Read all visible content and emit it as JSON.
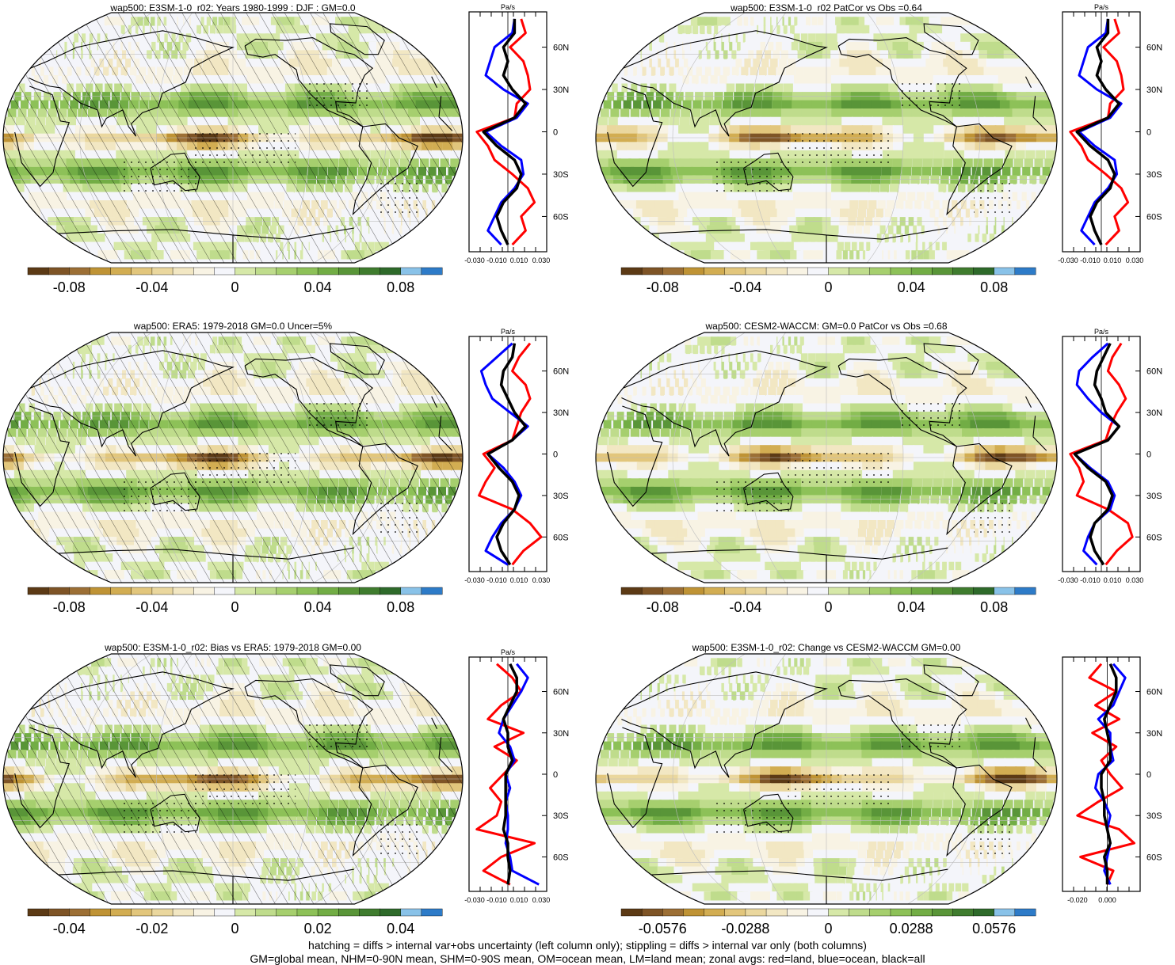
{
  "chart_data": [
    {
      "type": "heatmap",
      "title": "wap500: E3SM-1-0_r02: Years 1980-1999 : DJF : GM=0.0",
      "colorbar_ticks": [
        "-0.08",
        "-0.04",
        "0",
        "0.04",
        "0.08"
      ],
      "colorbar_range": [
        -0.11,
        0.11
      ],
      "hatching": true,
      "profile": {
        "unit": "Pa/s",
        "x_ticks": [
          "-0.030",
          "-0.010",
          "0.010",
          "0.030"
        ],
        "xlim": [
          -0.035,
          0.035
        ],
        "y_ticks": [
          "60N",
          "30N",
          "0",
          "30S",
          "60S"
        ],
        "series": [
          {
            "name": "land",
            "color": "#ff0000",
            "lat": [
              80,
              70,
              60,
              50,
              40,
              30,
              20,
              10,
              0,
              -10,
              -20,
              -30,
              -40,
              -50,
              -60,
              -70,
              -80
            ],
            "values": [
              0.012,
              0.016,
              0.002,
              0.014,
              0.018,
              0.02,
              0.008,
              0.006,
              -0.028,
              -0.018,
              -0.012,
              0.004,
              0.018,
              0.024,
              0.012,
              0.016,
              0.004
            ]
          },
          {
            "name": "ocean",
            "color": "#0000ff",
            "lat": [
              80,
              70,
              60,
              50,
              40,
              30,
              20,
              10,
              0,
              -10,
              -20,
              -30,
              -40,
              -50,
              -60,
              -70,
              -80
            ],
            "values": [
              0.006,
              0.004,
              -0.012,
              -0.016,
              -0.02,
              -0.004,
              0.018,
              0.008,
              -0.02,
              -0.006,
              0.012,
              0.014,
              0.006,
              -0.006,
              -0.012,
              -0.018,
              -0.006
            ]
          },
          {
            "name": "all",
            "color": "#000000",
            "lat": [
              80,
              70,
              60,
              50,
              40,
              30,
              20,
              10,
              0,
              -10,
              -20,
              -30,
              -40,
              -50,
              -60,
              -70,
              -80
            ],
            "values": [
              0.006,
              0.006,
              -0.004,
              0.0,
              -0.004,
              0.004,
              0.016,
              0.006,
              -0.022,
              -0.01,
              0.006,
              0.012,
              0.008,
              -0.004,
              -0.01,
              -0.006,
              0.0
            ]
          }
        ]
      }
    },
    {
      "type": "heatmap",
      "title": "wap500: E3SM-1-0_r02 PatCor vs Obs =0.64",
      "colorbar_ticks": [
        "-0.08",
        "-0.04",
        "0",
        "0.04",
        "0.08"
      ],
      "colorbar_range": [
        -0.11,
        0.11
      ],
      "hatching": false,
      "profile": {
        "unit": "Pa/s",
        "x_ticks": [
          "-0.030",
          "-0.010",
          "0.010",
          "0.030"
        ],
        "xlim": [
          -0.035,
          0.035
        ],
        "y_ticks": [
          "60N",
          "30N",
          "0",
          "30S",
          "60S"
        ],
        "series": [
          {
            "name": "land",
            "color": "#ff0000",
            "lat": [
              80,
              70,
              60,
              50,
              40,
              30,
              20,
              10,
              0,
              -10,
              -20,
              -30,
              -40,
              -50,
              -60,
              -70,
              -80
            ],
            "values": [
              0.012,
              0.016,
              0.002,
              0.014,
              0.018,
              0.02,
              0.008,
              0.006,
              -0.028,
              -0.018,
              -0.012,
              0.004,
              0.018,
              0.024,
              0.012,
              0.016,
              0.004
            ]
          },
          {
            "name": "ocean",
            "color": "#0000ff",
            "lat": [
              80,
              70,
              60,
              50,
              40,
              30,
              20,
              10,
              0,
              -10,
              -20,
              -30,
              -40,
              -50,
              -60,
              -70,
              -80
            ],
            "values": [
              0.006,
              0.004,
              -0.012,
              -0.016,
              -0.02,
              -0.004,
              0.018,
              0.008,
              -0.02,
              -0.006,
              0.012,
              0.014,
              0.006,
              -0.006,
              -0.012,
              -0.018,
              -0.006
            ]
          },
          {
            "name": "all",
            "color": "#000000",
            "lat": [
              80,
              70,
              60,
              50,
              40,
              30,
              20,
              10,
              0,
              -10,
              -20,
              -30,
              -40,
              -50,
              -60,
              -70,
              -80
            ],
            "values": [
              0.006,
              0.006,
              -0.004,
              0.0,
              -0.004,
              0.004,
              0.016,
              0.006,
              -0.022,
              -0.01,
              0.006,
              0.012,
              0.008,
              -0.004,
              -0.01,
              -0.006,
              0.0
            ]
          }
        ]
      }
    },
    {
      "type": "heatmap",
      "title": "wap500: ERA5: 1979-2018 GM=0.0 Uncer=5%",
      "colorbar_ticks": [
        "-0.08",
        "-0.04",
        "0",
        "0.04",
        "0.08"
      ],
      "colorbar_range": [
        -0.11,
        0.11
      ],
      "hatching": true,
      "profile": {
        "unit": "Pa/s",
        "x_ticks": [
          "-0.030",
          "-0.010",
          "0.010",
          "0.030"
        ],
        "xlim": [
          -0.035,
          0.035
        ],
        "y_ticks": [
          "60N",
          "30N",
          "0",
          "30S",
          "60S"
        ],
        "series": [
          {
            "name": "land",
            "color": "#ff0000",
            "lat": [
              80,
              70,
              60,
              50,
              40,
              30,
              20,
              10,
              0,
              -10,
              -20,
              -30,
              -40,
              -50,
              -60,
              -70,
              -80
            ],
            "values": [
              0.02,
              0.01,
              0.004,
              0.016,
              0.02,
              0.012,
              0.008,
              0.004,
              -0.022,
              -0.012,
              -0.02,
              -0.026,
              0.004,
              0.02,
              0.03,
              0.014,
              0.004
            ]
          },
          {
            "name": "ocean",
            "color": "#0000ff",
            "lat": [
              80,
              70,
              60,
              50,
              40,
              30,
              20,
              10,
              0,
              -10,
              -20,
              -30,
              -40,
              -50,
              -60,
              -70,
              -80
            ],
            "values": [
              0.004,
              -0.01,
              -0.024,
              -0.02,
              -0.014,
              0.002,
              0.018,
              0.004,
              -0.018,
              -0.004,
              0.006,
              0.012,
              0.006,
              -0.006,
              -0.014,
              -0.02,
              0.0
            ]
          },
          {
            "name": "all",
            "color": "#000000",
            "lat": [
              80,
              70,
              60,
              50,
              40,
              30,
              20,
              10,
              0,
              -10,
              -20,
              -30,
              -40,
              -50,
              -60,
              -70,
              -80
            ],
            "values": [
              0.006,
              0.004,
              -0.004,
              -0.006,
              0.0,
              0.006,
              0.016,
              0.004,
              -0.018,
              -0.008,
              0.004,
              0.01,
              0.006,
              -0.004,
              -0.01,
              -0.006,
              0.002
            ]
          }
        ]
      }
    },
    {
      "type": "heatmap",
      "title": "wap500: CESM2-WACCM: GM=0.0 PatCor vs Obs =0.68",
      "colorbar_ticks": [
        "-0.08",
        "-0.04",
        "0",
        "0.04",
        "0.08"
      ],
      "colorbar_range": [
        -0.11,
        0.11
      ],
      "hatching": false,
      "profile": {
        "unit": "Pa/s",
        "x_ticks": [
          "-0.030",
          "-0.010",
          "0.010",
          "0.030"
        ],
        "xlim": [
          -0.035,
          0.035
        ],
        "y_ticks": [
          "60N",
          "30N",
          "0",
          "30S",
          "60S"
        ],
        "series": [
          {
            "name": "land",
            "color": "#ff0000",
            "lat": [
              80,
              70,
              60,
              50,
              40,
              30,
              20,
              10,
              0,
              -10,
              -20,
              -30,
              -40,
              -50,
              -60,
              -70,
              -80
            ],
            "values": [
              0.018,
              0.01,
              0.006,
              0.016,
              0.022,
              0.014,
              0.008,
              0.004,
              -0.028,
              -0.02,
              -0.016,
              -0.022,
              0.006,
              0.024,
              0.028,
              0.014,
              0.004
            ]
          },
          {
            "name": "ocean",
            "color": "#0000ff",
            "lat": [
              80,
              70,
              60,
              50,
              40,
              30,
              20,
              10,
              0,
              -10,
              -20,
              -30,
              -40,
              -50,
              -60,
              -70,
              -80
            ],
            "values": [
              0.006,
              -0.008,
              -0.02,
              -0.022,
              -0.012,
              0.0,
              0.016,
              0.006,
              -0.024,
              -0.01,
              0.006,
              0.012,
              0.008,
              -0.006,
              -0.012,
              -0.016,
              -0.004
            ]
          },
          {
            "name": "all",
            "color": "#000000",
            "lat": [
              80,
              70,
              60,
              50,
              40,
              30,
              20,
              10,
              0,
              -10,
              -20,
              -30,
              -40,
              -50,
              -60,
              -70,
              -80
            ],
            "values": [
              0.008,
              0.002,
              -0.004,
              -0.006,
              0.0,
              0.004,
              0.016,
              0.006,
              -0.024,
              -0.012,
              0.004,
              0.01,
              0.006,
              -0.006,
              -0.01,
              -0.006,
              0.002
            ]
          }
        ]
      }
    },
    {
      "type": "heatmap",
      "title": "wap500: E3SM-1-0_r02: Bias vs ERA5: 1979-2018 GM=0.00",
      "colorbar_ticks": [
        "-0.04",
        "-0.02",
        "0",
        "0.02",
        "0.04"
      ],
      "colorbar_range": [
        -0.055,
        0.055
      ],
      "hatching": true,
      "profile": {
        "unit": "Pa/s",
        "x_ticks": [
          "-0.030",
          "-0.010",
          "0.010",
          "0.030"
        ],
        "xlim": [
          -0.035,
          0.035
        ],
        "y_ticks": [
          "60N",
          "30N",
          "0",
          "30S",
          "60S"
        ],
        "series": [
          {
            "name": "land",
            "color": "#ff0000",
            "lat": [
              80,
              70,
              60,
              50,
              40,
              30,
              20,
              10,
              0,
              -10,
              -20,
              -30,
              -40,
              -50,
              -60,
              -70,
              -80
            ],
            "values": [
              -0.01,
              0.004,
              0.012,
              -0.006,
              -0.018,
              0.014,
              -0.012,
              0.008,
              -0.004,
              -0.016,
              -0.006,
              -0.01,
              -0.028,
              0.024,
              -0.006,
              -0.022,
              0.002
            ]
          },
          {
            "name": "ocean",
            "color": "#0000ff",
            "lat": [
              80,
              70,
              60,
              50,
              40,
              30,
              20,
              10,
              0,
              -10,
              -20,
              -30,
              -40,
              -50,
              -60,
              -70,
              -80
            ],
            "values": [
              0.008,
              0.018,
              0.012,
              0.004,
              -0.004,
              -0.008,
              0.002,
              0.006,
              -0.002,
              0.002,
              -0.002,
              0.0,
              0.0,
              -0.002,
              0.002,
              0.004,
              0.028
            ]
          },
          {
            "name": "all",
            "color": "#000000",
            "lat": [
              80,
              70,
              60,
              50,
              40,
              30,
              20,
              10,
              0,
              -10,
              -20,
              -30,
              -40,
              -50,
              -60,
              -70,
              -80
            ],
            "values": [
              0.002,
              0.008,
              0.008,
              0.002,
              -0.004,
              0.0,
              0.0,
              0.004,
              -0.002,
              -0.002,
              -0.002,
              -0.002,
              -0.004,
              0.0,
              0.0,
              0.002,
              0.0
            ]
          }
        ]
      }
    },
    {
      "type": "heatmap",
      "title": "wap500: E3SM-1-0_r02: Change vs CESM2-WACCM GM=0.00",
      "colorbar_ticks": [
        "-0.0576",
        "-0.0288",
        "0",
        "0.0288",
        "0.0576"
      ],
      "colorbar_range": [
        -0.079,
        0.079
      ],
      "hatching": false,
      "profile": {
        "unit": "",
        "x_ticks": [
          "-0.020",
          "0.000"
        ],
        "xlim": [
          -0.03,
          0.022
        ],
        "y_ticks": [
          "60N",
          "30N",
          "0",
          "30S",
          "60S"
        ],
        "series": [
          {
            "name": "land",
            "color": "#ff0000",
            "lat": [
              80,
              70,
              60,
              50,
              40,
              30,
              20,
              10,
              0,
              -10,
              -20,
              -30,
              -40,
              -50,
              -60,
              -70,
              -80
            ],
            "values": [
              -0.004,
              -0.012,
              0.006,
              -0.008,
              0.008,
              -0.01,
              0.006,
              -0.004,
              0.002,
              0.01,
              -0.006,
              -0.02,
              0.008,
              0.018,
              -0.018,
              0.004,
              0.0
            ]
          },
          {
            "name": "ocean",
            "color": "#0000ff",
            "lat": [
              80,
              70,
              60,
              50,
              40,
              30,
              20,
              10,
              0,
              -10,
              -20,
              -30,
              -40,
              -50,
              -60,
              -70,
              -80
            ],
            "values": [
              0.004,
              0.012,
              0.008,
              0.004,
              -0.006,
              0.002,
              0.002,
              0.004,
              -0.006,
              -0.008,
              -0.002,
              0.002,
              0.0,
              0.002,
              0.0,
              -0.002,
              0.002
            ]
          },
          {
            "name": "all",
            "color": "#000000",
            "lat": [
              80,
              70,
              60,
              50,
              40,
              30,
              20,
              10,
              0,
              -10,
              -20,
              -30,
              -40,
              -50,
              -60,
              -70,
              -80
            ],
            "values": [
              0.002,
              0.006,
              0.006,
              0.002,
              -0.002,
              0.0,
              0.002,
              0.002,
              -0.004,
              -0.004,
              -0.002,
              -0.002,
              0.0,
              0.002,
              -0.002,
              0.0,
              0.0
            ]
          }
        ]
      }
    }
  ],
  "colors": {
    "palette": [
      "#5c3a15",
      "#7e5426",
      "#9c6f35",
      "#bf9335",
      "#d2ad52",
      "#e2c67c",
      "#ead79e",
      "#f2e7c3",
      "#f8f3e4",
      "#f4f5fa",
      "#d6e8a8",
      "#bfdc8c",
      "#a6cf6e",
      "#8dc158",
      "#72ad45",
      "#599538",
      "#3f7c2e",
      "#2e6a2a",
      "#89c2e8",
      "#2d7bc8"
    ],
    "land": "#ff0000",
    "ocean": "#0000ff",
    "all": "#000000"
  },
  "footer": {
    "line1": "hatching = diffs > internal var+obs uncertainty (left column only); stippling = diffs > internal var only (both columns)",
    "line2": "GM=global mean, NHM=0-90N mean, SHM=0-90S mean, OM=ocean mean, LM=land mean; zonal avgs: red=land, blue=ocean, black=all"
  }
}
